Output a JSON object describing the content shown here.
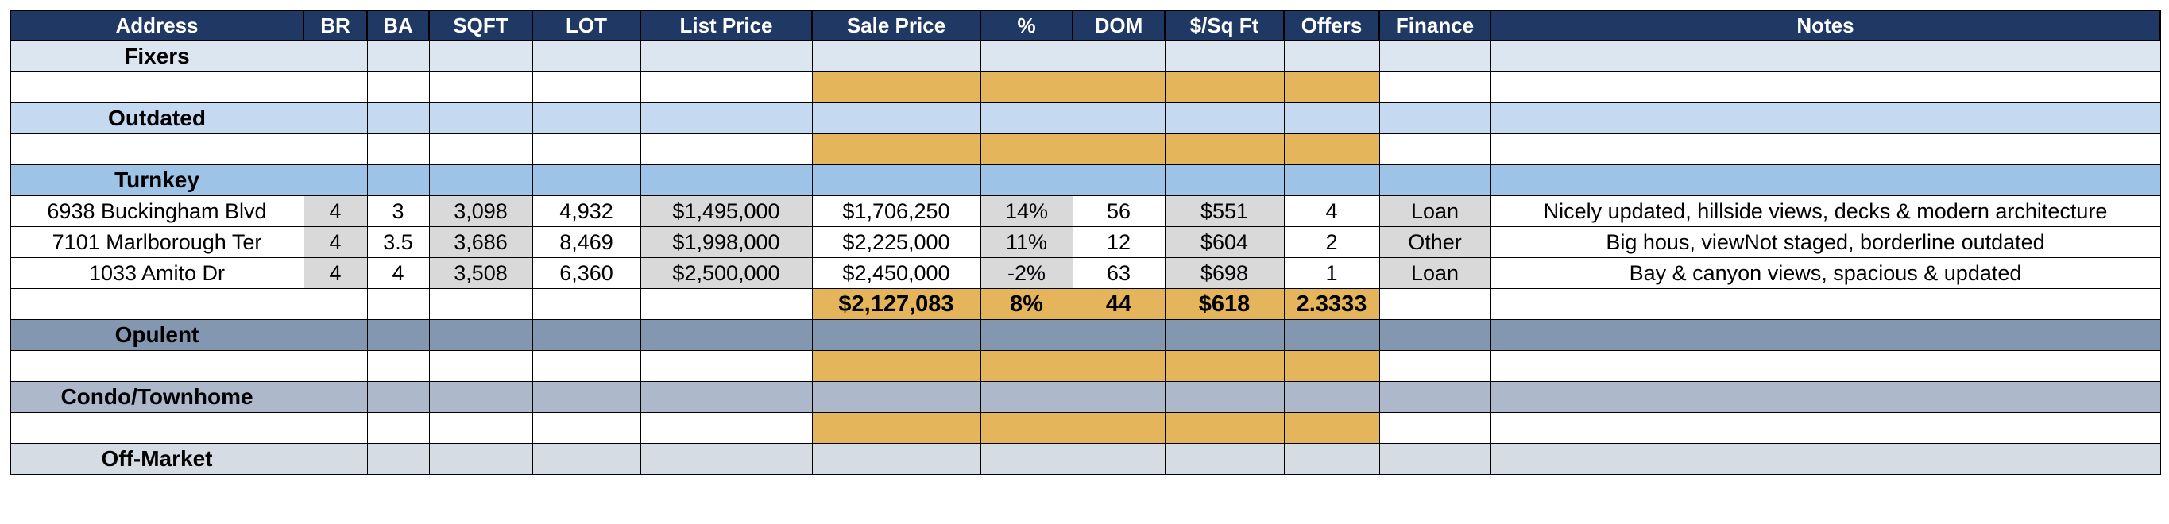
{
  "columns": [
    "Address",
    "BR",
    "BA",
    "SQFT",
    "LOT",
    "List Price",
    "Sale Price",
    "%",
    "DOM",
    "$/Sq Ft",
    "Offers",
    "Finance",
    "Notes"
  ],
  "sections": {
    "fixers": "Fixers",
    "outdated": "Outdated",
    "turnkey": "Turnkey",
    "opulent": "Opulent",
    "condo": "Condo/Townhome",
    "offmarket": "Off-Market"
  },
  "turnkey_rows": [
    {
      "address": "6938 Buckingham Blvd",
      "br": "4",
      "ba": "3",
      "sqft": "3,098",
      "lot": "4,932",
      "list": "$1,495,000",
      "sale": "$1,706,250",
      "pct": "14%",
      "dom": "56",
      "ppsf": "$551",
      "offers": "4",
      "finance": "Loan",
      "notes": "Nicely updated, hillside views, decks & modern architecture"
    },
    {
      "address": "7101 Marlborough Ter",
      "br": "4",
      "ba": "3.5",
      "sqft": "3,686",
      "lot": "8,469",
      "list": "$1,998,000",
      "sale": "$2,225,000",
      "pct": "11%",
      "dom": "12",
      "ppsf": "$604",
      "offers": "2",
      "finance": "Other",
      "notes": "Big hous, viewNot staged, borderline outdated"
    },
    {
      "address": "1033 Amito Dr",
      "br": "4",
      "ba": "4",
      "sqft": "3,508",
      "lot": "6,360",
      "list": "$2,500,000",
      "sale": "$2,450,000",
      "pct": "-2%",
      "dom": "63",
      "ppsf": "$698",
      "offers": "1",
      "finance": "Loan",
      "notes": "Bay & canyon views, spacious & updated"
    }
  ],
  "turnkey_summary": {
    "sale": "$2,127,083",
    "pct": "8%",
    "dom": "44",
    "ppsf": "$618",
    "offers": "2.3333"
  }
}
